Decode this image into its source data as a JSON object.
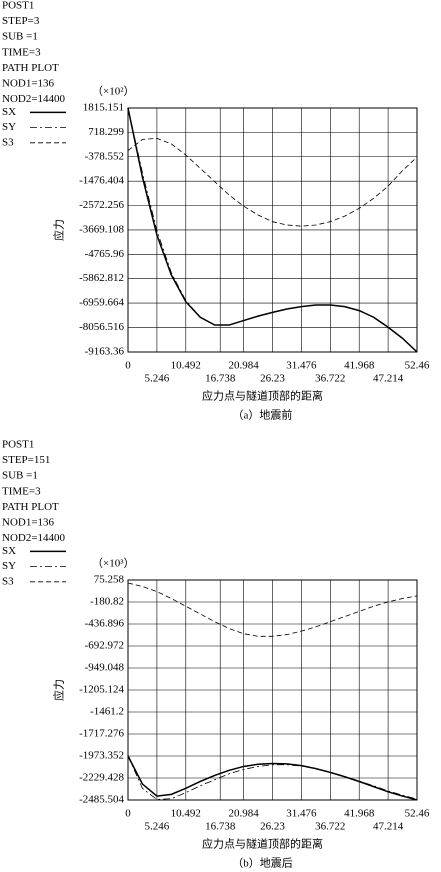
{
  "chart_data": [
    {
      "type": "line",
      "header_lines": [
        "POST1",
        "STEP=3",
        "SUB =1",
        "TIME=3",
        "PATH PLOT",
        "NOD1=136",
        "NOD2=14400"
      ],
      "scale_note": "（×10²）",
      "ylabel": "应力",
      "xlabel": "应力点与隧道顶部的距离",
      "caption": "（a）地震前",
      "xlim": [
        0,
        52.46
      ],
      "ylim": [
        -9163.36,
        1815.151
      ],
      "xticks": [
        0,
        5.246,
        10.492,
        16.738,
        20.984,
        26.23,
        31.476,
        36.722,
        41.968,
        47.214,
        52.46
      ],
      "yticks": [
        1815.151,
        718.299,
        -378.552,
        -1476.404,
        -2572.256,
        -3669.108,
        -4765.96,
        -5862.812,
        -6959.664,
        -8056.516,
        -9163.36
      ],
      "grid": true,
      "x": [
        0,
        2.623,
        5.246,
        7.869,
        10.492,
        13.115,
        15.738,
        18.361,
        20.984,
        23.607,
        26.23,
        28.853,
        31.476,
        34.099,
        36.722,
        39.345,
        41.968,
        44.591,
        47.214,
        49.837,
        52.46
      ],
      "series": [
        {
          "name": "SX",
          "color": "#000000",
          "dash": "solid",
          "values": [
            1815,
            -1300,
            -3900,
            -5700,
            -6900,
            -7600,
            -7950,
            -7950,
            -7750,
            -7550,
            -7380,
            -7230,
            -7120,
            -7050,
            -7050,
            -7120,
            -7300,
            -7600,
            -8050,
            -8550,
            -9163
          ]
        },
        {
          "name": "SY",
          "color": "#000000",
          "dash": "dashdot",
          "values": [
            1815,
            -1100,
            -3700,
            -5600,
            -6850,
            -7600,
            -7950,
            -7950,
            -7750,
            -7550,
            -7380,
            -7230,
            -7120,
            -7050,
            -7050,
            -7120,
            -7300,
            -7600,
            -8050,
            -8550,
            -9163
          ]
        },
        {
          "name": "S3",
          "color": "#000000",
          "dash": "dashed",
          "values": [
            -100,
            400,
            450,
            200,
            -300,
            -900,
            -1500,
            -2100,
            -2600,
            -3000,
            -3300,
            -3450,
            -3500,
            -3450,
            -3300,
            -3050,
            -2700,
            -2250,
            -1700,
            -1000,
            -400
          ]
        }
      ]
    },
    {
      "type": "line",
      "header_lines": [
        "POST1",
        "STEP=151",
        "SUB =1",
        "TIME=3",
        "PATH PLOT",
        "NOD1=136",
        "NOD2=14400"
      ],
      "scale_note": "（×10³）",
      "ylabel": "应力",
      "xlabel": "应力点与隧道顶部的距离",
      "caption": "（b）地震后",
      "xlim": [
        0,
        52.46
      ],
      "ylim": [
        -2485.504,
        75.258
      ],
      "xticks": [
        0,
        5.246,
        10.492,
        16.738,
        20.984,
        26.23,
        31.476,
        36.722,
        41.968,
        47.214,
        52.46
      ],
      "yticks": [
        75.258,
        -180.82,
        -436.896,
        -692.972,
        -949.048,
        -1205.124,
        -1461.2,
        -1717.276,
        -1973.352,
        -2229.428,
        -2485.504
      ],
      "grid": true,
      "x": [
        0,
        2.623,
        5.246,
        7.869,
        10.492,
        13.115,
        15.738,
        18.361,
        20.984,
        23.607,
        26.23,
        28.853,
        31.476,
        34.099,
        36.722,
        39.345,
        41.968,
        44.591,
        47.214,
        49.837,
        52.46
      ],
      "series": [
        {
          "name": "SX",
          "color": "#000000",
          "dash": "solid",
          "values": [
            -1973,
            -2300,
            -2440,
            -2420,
            -2350,
            -2270,
            -2200,
            -2140,
            -2095,
            -2070,
            -2060,
            -2065,
            -2085,
            -2120,
            -2165,
            -2215,
            -2270,
            -2330,
            -2390,
            -2440,
            -2485
          ]
        },
        {
          "name": "SY",
          "color": "#000000",
          "dash": "dashdot",
          "values": [
            -1973,
            -2350,
            -2480,
            -2470,
            -2400,
            -2320,
            -2250,
            -2180,
            -2130,
            -2095,
            -2075,
            -2075,
            -2090,
            -2120,
            -2160,
            -2210,
            -2265,
            -2320,
            -2380,
            -2430,
            -2475
          ]
        },
        {
          "name": "S3",
          "color": "#000000",
          "dash": "dashed",
          "values": [
            40,
            0,
            -60,
            -140,
            -230,
            -320,
            -410,
            -490,
            -550,
            -580,
            -580,
            -560,
            -520,
            -470,
            -410,
            -350,
            -290,
            -230,
            -180,
            -140,
            -110
          ]
        }
      ]
    }
  ]
}
